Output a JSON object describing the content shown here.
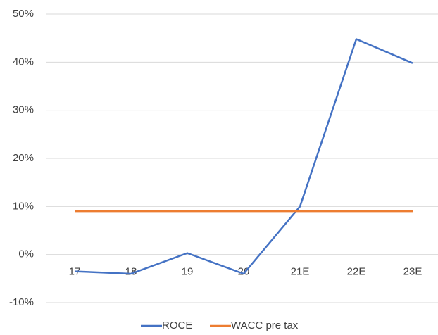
{
  "chart_data": {
    "type": "line",
    "categories": [
      "17",
      "18",
      "19",
      "20",
      "21E",
      "22E",
      "23E"
    ],
    "series": [
      {
        "name": "ROCE",
        "color": "#4472c4",
        "values": [
          -3.5,
          -4,
          0.3,
          -4,
          10,
          44.8,
          39.8
        ]
      },
      {
        "name": "WACC pre tax",
        "color": "#ed7d31",
        "values": [
          9,
          9,
          9,
          9,
          9,
          9,
          9
        ]
      }
    ],
    "ylim": [
      -10,
      50
    ],
    "yticks": [
      {
        "value": -10,
        "label": "-10%"
      },
      {
        "value": 0,
        "label": "0%"
      },
      {
        "value": 10,
        "label": "10%"
      },
      {
        "value": 20,
        "label": "20%"
      },
      {
        "value": 30,
        "label": "30%"
      },
      {
        "value": 40,
        "label": "40%"
      },
      {
        "value": 50,
        "label": "50%"
      }
    ],
    "grid": true,
    "legend": "bottom"
  }
}
